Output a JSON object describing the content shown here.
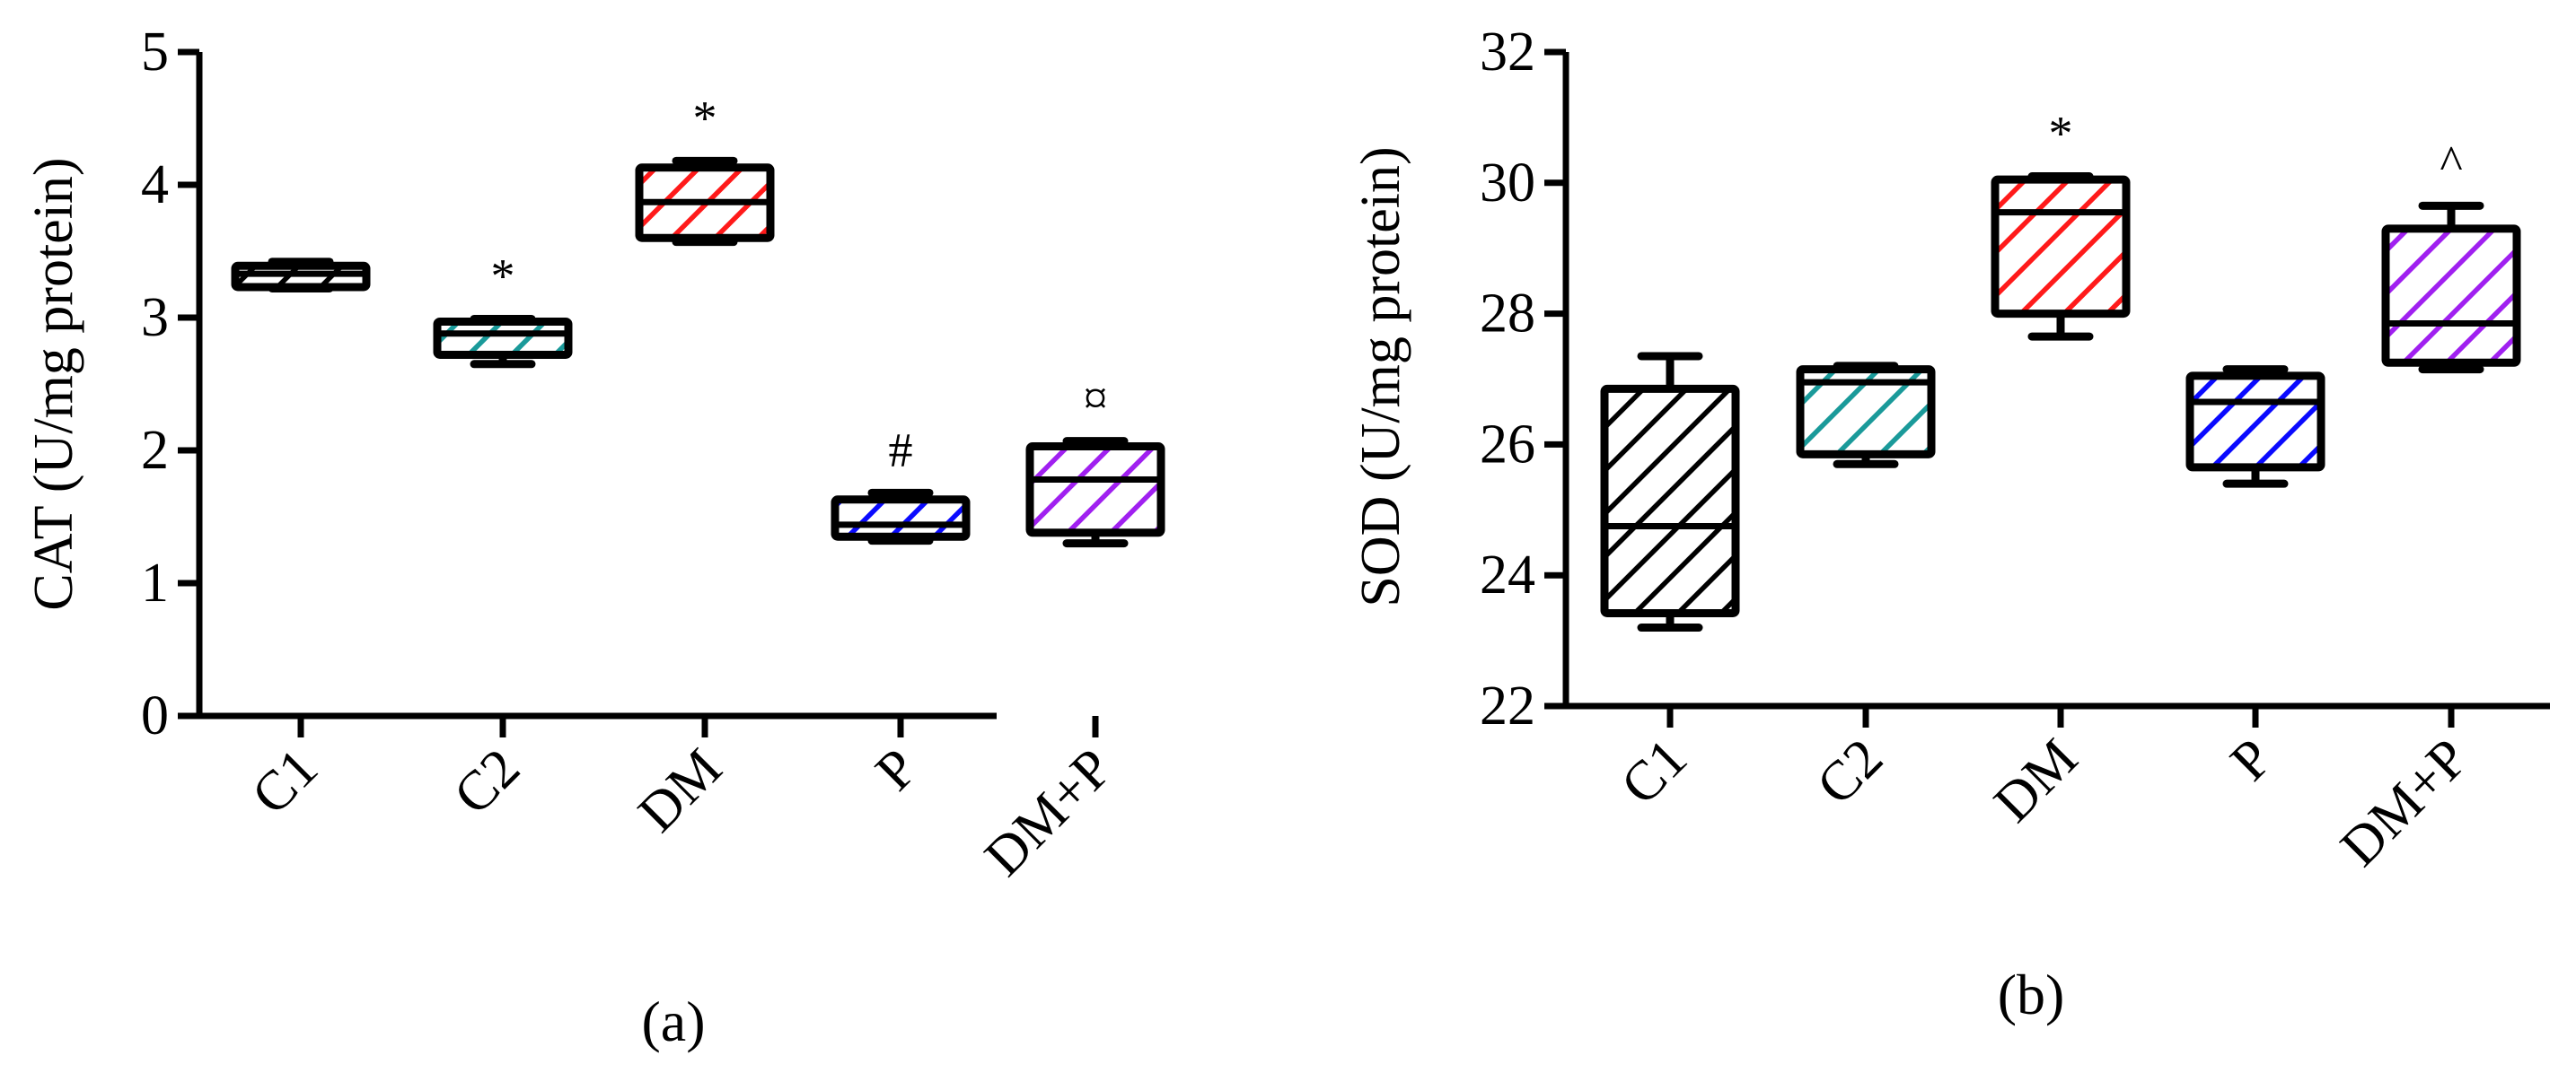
{
  "chart_data": [
    {
      "type": "box",
      "panel_label": "(a)",
      "ylabel": "CAT (U/mg protein)",
      "ylim": [
        0,
        5
      ],
      "yticks": [
        "0",
        "1",
        "2",
        "3",
        "4",
        "5"
      ],
      "categories": [
        "C1",
        "C2",
        "DM",
        "P",
        "DM+P"
      ],
      "boxes": [
        {
          "category": "C1",
          "min": 3.22,
          "q1": 3.23,
          "median": 3.33,
          "q3": 3.39,
          "max": 3.42,
          "annotation": "",
          "color": "#000000"
        },
        {
          "category": "C2",
          "min": 2.65,
          "q1": 2.72,
          "median": 2.88,
          "q3": 2.97,
          "max": 2.99,
          "annotation": "*",
          "color": "#1a9a9a"
        },
        {
          "category": "DM",
          "min": 3.57,
          "q1": 3.6,
          "median": 3.87,
          "q3": 4.13,
          "max": 4.18,
          "annotation": "*",
          "color": "#ff1a1a"
        },
        {
          "category": "P",
          "min": 1.32,
          "q1": 1.35,
          "median": 1.44,
          "q3": 1.63,
          "max": 1.68,
          "annotation": "#",
          "color": "#0a0aff"
        },
        {
          "category": "DM+P",
          "min": 1.3,
          "q1": 1.38,
          "median": 1.78,
          "q3": 2.03,
          "max": 2.07,
          "annotation": "¤",
          "color": "#a020f0"
        }
      ]
    },
    {
      "type": "box",
      "panel_label": "(b)",
      "ylabel": "SOD (U/mg protein)",
      "ylim": [
        22,
        32
      ],
      "yticks": [
        "22",
        "24",
        "26",
        "28",
        "30",
        "32"
      ],
      "categories": [
        "C1",
        "C2",
        "DM",
        "P",
        "DM+P"
      ],
      "boxes": [
        {
          "category": "C1",
          "min": 23.2,
          "q1": 23.42,
          "median": 24.75,
          "q3": 26.85,
          "max": 27.35,
          "annotation": "",
          "color": "#000000"
        },
        {
          "category": "C2",
          "min": 25.7,
          "q1": 25.85,
          "median": 26.95,
          "q3": 27.15,
          "max": 27.2,
          "annotation": "",
          "color": "#1a9a9a"
        },
        {
          "category": "DM",
          "min": 27.65,
          "q1": 28.0,
          "median": 29.55,
          "q3": 30.05,
          "max": 30.1,
          "annotation": "*",
          "color": "#ff1a1a"
        },
        {
          "category": "P",
          "min": 25.4,
          "q1": 25.65,
          "median": 26.65,
          "q3": 27.05,
          "max": 27.15,
          "annotation": "",
          "color": "#0a0aff"
        },
        {
          "category": "DM+P",
          "min": 27.15,
          "q1": 27.25,
          "median": 27.85,
          "q3": 29.3,
          "max": 29.65,
          "annotation": "^",
          "color": "#a020f0"
        }
      ]
    }
  ]
}
